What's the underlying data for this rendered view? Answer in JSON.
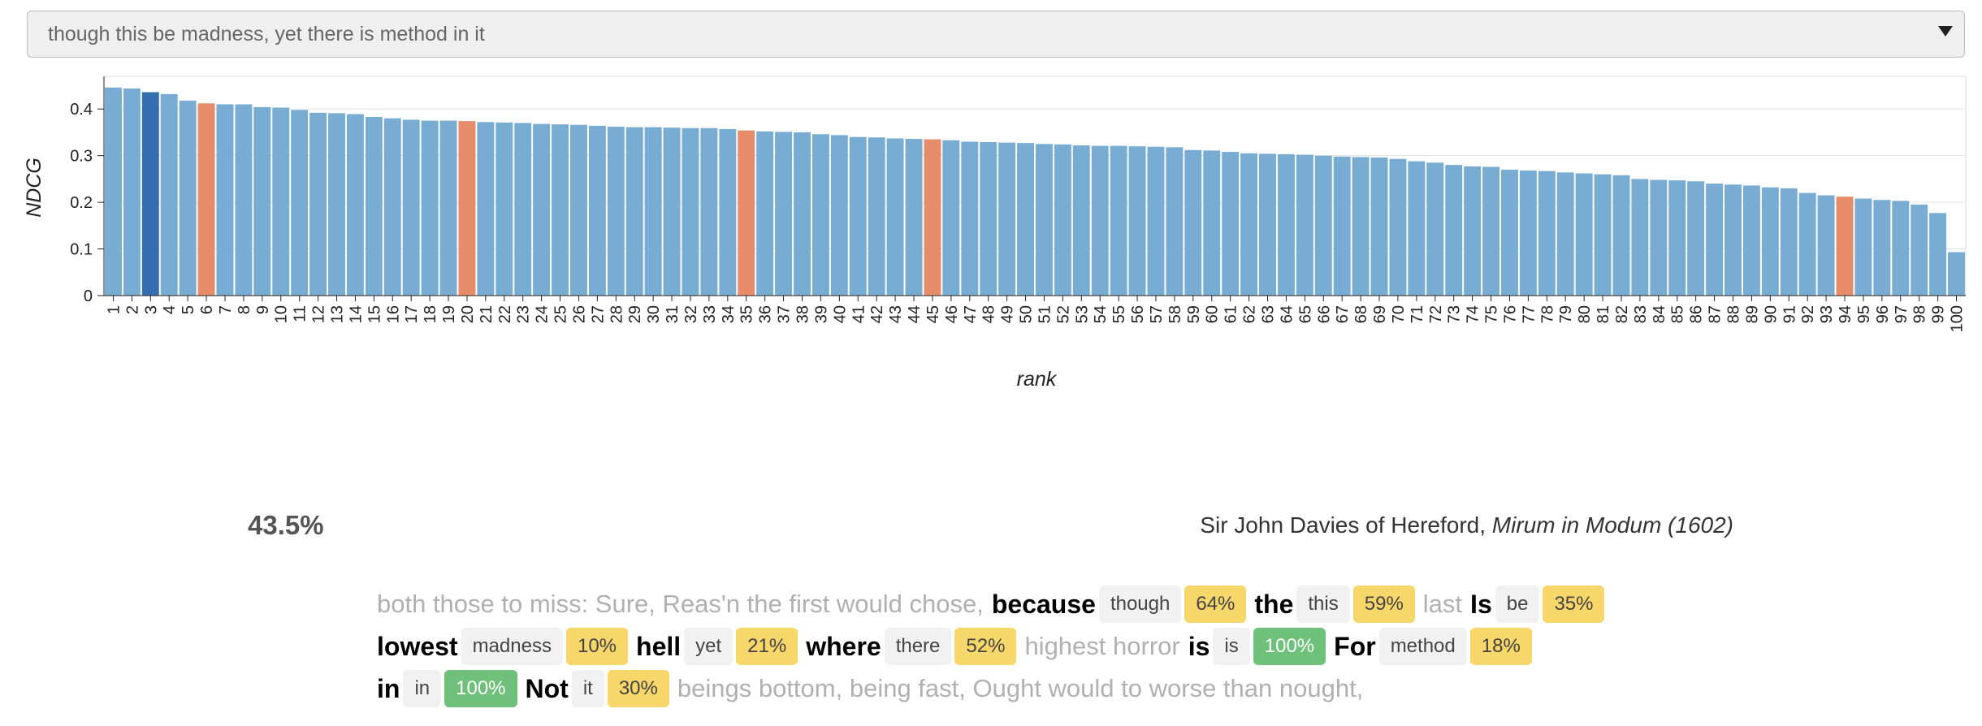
{
  "header": {
    "query": "though this be madness, yet there is method in it"
  },
  "chart_data": {
    "type": "bar",
    "x_label": "rank",
    "y_label": "NDCG",
    "categories": [
      1,
      2,
      3,
      4,
      5,
      6,
      7,
      8,
      9,
      10,
      11,
      12,
      13,
      14,
      15,
      16,
      17,
      18,
      19,
      20,
      21,
      22,
      23,
      24,
      25,
      26,
      27,
      28,
      29,
      30,
      31,
      32,
      33,
      34,
      35,
      36,
      37,
      38,
      39,
      40,
      41,
      42,
      43,
      44,
      45,
      46,
      47,
      48,
      49,
      50,
      51,
      52,
      53,
      54,
      55,
      56,
      57,
      58,
      59,
      60,
      61,
      62,
      63,
      64,
      65,
      66,
      67,
      68,
      69,
      70,
      71,
      72,
      73,
      74,
      75,
      76,
      77,
      78,
      79,
      80,
      81,
      82,
      83,
      84,
      85,
      86,
      87,
      88,
      89,
      90,
      91,
      92,
      93,
      94,
      95,
      96,
      97,
      98,
      99,
      100
    ],
    "values": [
      0.446,
      0.444,
      0.436,
      0.432,
      0.418,
      0.412,
      0.41,
      0.41,
      0.404,
      0.403,
      0.398,
      0.392,
      0.391,
      0.389,
      0.383,
      0.38,
      0.377,
      0.375,
      0.375,
      0.374,
      0.372,
      0.371,
      0.37,
      0.368,
      0.367,
      0.366,
      0.364,
      0.362,
      0.361,
      0.361,
      0.36,
      0.359,
      0.359,
      0.357,
      0.354,
      0.352,
      0.351,
      0.35,
      0.346,
      0.344,
      0.34,
      0.339,
      0.337,
      0.336,
      0.335,
      0.333,
      0.33,
      0.329,
      0.328,
      0.327,
      0.325,
      0.324,
      0.322,
      0.321,
      0.321,
      0.32,
      0.319,
      0.318,
      0.312,
      0.311,
      0.308,
      0.305,
      0.304,
      0.303,
      0.302,
      0.3,
      0.298,
      0.297,
      0.296,
      0.293,
      0.288,
      0.285,
      0.28,
      0.277,
      0.276,
      0.27,
      0.268,
      0.267,
      0.264,
      0.262,
      0.26,
      0.258,
      0.25,
      0.248,
      0.247,
      0.245,
      0.24,
      0.238,
      0.236,
      0.232,
      0.23,
      0.22,
      0.215,
      0.212,
      0.208,
      0.205,
      0.203,
      0.195,
      0.177,
      0.093
    ],
    "colors": [
      "#79acd2",
      "#79acd2",
      "#356eb0",
      "#79acd2",
      "#79acd2",
      "#e68c6a",
      "#79acd2",
      "#79acd2",
      "#79acd2",
      "#79acd2",
      "#79acd2",
      "#79acd2",
      "#79acd2",
      "#79acd2",
      "#79acd2",
      "#79acd2",
      "#79acd2",
      "#79acd2",
      "#79acd2",
      "#e68c6a",
      "#79acd2",
      "#79acd2",
      "#79acd2",
      "#79acd2",
      "#79acd2",
      "#79acd2",
      "#79acd2",
      "#79acd2",
      "#79acd2",
      "#79acd2",
      "#79acd2",
      "#79acd2",
      "#79acd2",
      "#79acd2",
      "#e68c6a",
      "#79acd2",
      "#79acd2",
      "#79acd2",
      "#79acd2",
      "#79acd2",
      "#79acd2",
      "#79acd2",
      "#79acd2",
      "#79acd2",
      "#e68c6a",
      "#79acd2",
      "#79acd2",
      "#79acd2",
      "#79acd2",
      "#79acd2",
      "#79acd2",
      "#79acd2",
      "#79acd2",
      "#79acd2",
      "#79acd2",
      "#79acd2",
      "#79acd2",
      "#79acd2",
      "#79acd2",
      "#79acd2",
      "#79acd2",
      "#79acd2",
      "#79acd2",
      "#79acd2",
      "#79acd2",
      "#79acd2",
      "#79acd2",
      "#79acd2",
      "#79acd2",
      "#79acd2",
      "#79acd2",
      "#79acd2",
      "#79acd2",
      "#79acd2",
      "#79acd2",
      "#79acd2",
      "#79acd2",
      "#79acd2",
      "#79acd2",
      "#79acd2",
      "#79acd2",
      "#79acd2",
      "#79acd2",
      "#79acd2",
      "#79acd2",
      "#79acd2",
      "#79acd2",
      "#79acd2",
      "#79acd2",
      "#79acd2",
      "#79acd2",
      "#79acd2",
      "#79acd2",
      "#e68c6a",
      "#79acd2",
      "#79acd2",
      "#79acd2",
      "#79acd2",
      "#79acd2",
      "#79acd2"
    ],
    "ylim": [
      0,
      0.47
    ],
    "yticks": [
      0,
      0.1,
      0.2,
      0.3,
      0.4
    ],
    "grid": true
  },
  "result": {
    "score": "43.5%",
    "author": "Sir John Davies of Hereford,",
    "work": "Mirum in Modum (1602)",
    "lines": [
      [
        {
          "kind": "context",
          "text": "both those to miss: Sure, Reas'n the first would chose,"
        },
        {
          "kind": "match",
          "word": "because",
          "query": "though",
          "score": "64%",
          "color": "#f7d66a"
        },
        {
          "kind": "match",
          "word": "the",
          "query": "this",
          "score": "59%",
          "color": "#f7d66a"
        },
        {
          "kind": "context",
          "text": "last"
        },
        {
          "kind": "match",
          "word": "Is",
          "query": "be",
          "score": "35%",
          "color": "#f7d66a"
        }
      ],
      [
        {
          "kind": "match",
          "word": "lowest",
          "query": "madness",
          "score": "10%",
          "color": "#f7d66a"
        },
        {
          "kind": "match",
          "word": "hell",
          "query": "yet",
          "score": "21%",
          "color": "#f7d66a"
        },
        {
          "kind": "match",
          "word": "where",
          "query": "there",
          "score": "52%",
          "color": "#f7d66a"
        },
        {
          "kind": "context",
          "text": "highest horror"
        },
        {
          "kind": "match",
          "word": "is",
          "query": "is",
          "score": "100%",
          "color": "#6ec07a"
        },
        {
          "kind": "match",
          "word": "For",
          "query": "method",
          "score": "18%",
          "color": "#f7d66a"
        }
      ],
      [
        {
          "kind": "match",
          "word": "in",
          "query": "in",
          "score": "100%",
          "color": "#6ec07a"
        },
        {
          "kind": "match",
          "word": "Not",
          "query": "it",
          "score": "30%",
          "color": "#f7d66a"
        },
        {
          "kind": "context",
          "text": "beings bottom, being fast, Ought would to worse than nought,"
        }
      ]
    ]
  }
}
